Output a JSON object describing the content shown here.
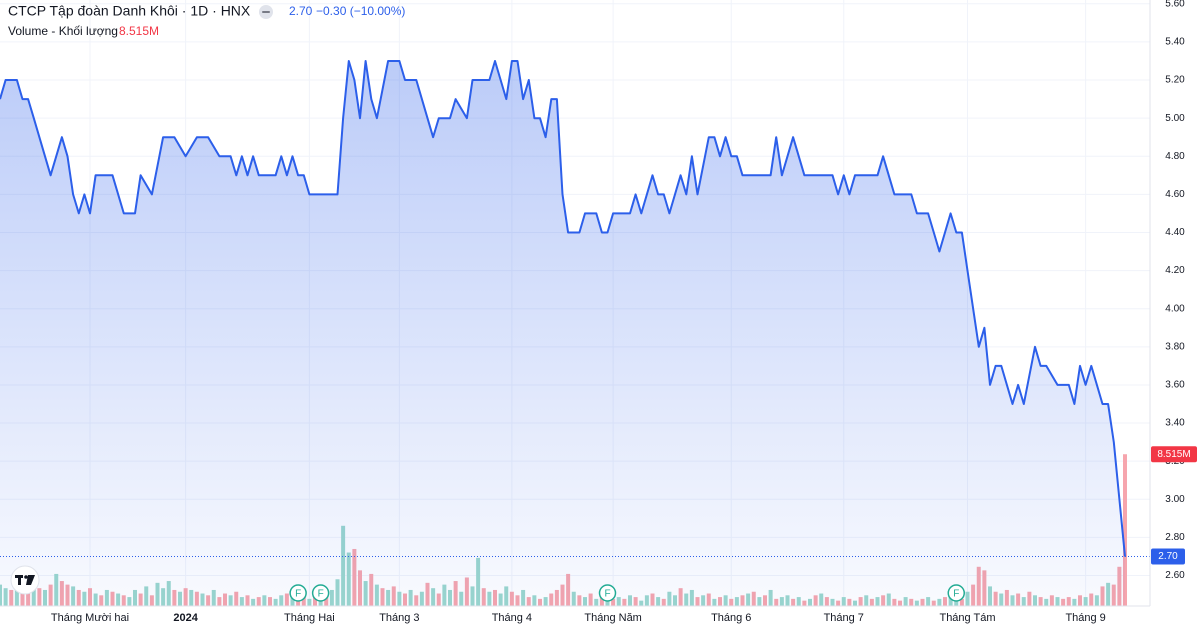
{
  "chart_data": {
    "type": "area",
    "title": "CTCP Tập đoàn Danh Khôi · 1D · HNX",
    "change": "−0.30 (−10.00%)",
    "line_color": "#2c5fea",
    "x": [
      0,
      1,
      3,
      4,
      5,
      6,
      8,
      9,
      11,
      12,
      13,
      14,
      15,
      16,
      17,
      20,
      22,
      24,
      25,
      27,
      29,
      31,
      33,
      35,
      37,
      39,
      41,
      42,
      43,
      44,
      45,
      46,
      49,
      50,
      51,
      52,
      53,
      54,
      55,
      60,
      61,
      62,
      63,
      64,
      65,
      66,
      67,
      69,
      71,
      72,
      74,
      76,
      77,
      78,
      80,
      81,
      83,
      84,
      87,
      88,
      90,
      91,
      92,
      93,
      94,
      95,
      96,
      97,
      98,
      99,
      100,
      101,
      103,
      104,
      106,
      107,
      108,
      109,
      112,
      113,
      114,
      116,
      117,
      118,
      119,
      121,
      122,
      123,
      124,
      126,
      127,
      128,
      129,
      130,
      131,
      132,
      137,
      138,
      139,
      141,
      143,
      148,
      149,
      150,
      151,
      152,
      156,
      157,
      159,
      162,
      163,
      165,
      166,
      167,
      169,
      170,
      171,
      172,
      174,
      175,
      176,
      177,
      178,
      180,
      181,
      182,
      184,
      185,
      186,
      188,
      190,
      191,
      192,
      193,
      194,
      196,
      197,
      198,
      199,
      200
    ],
    "values": [
      5.1,
      5.2,
      5.2,
      5.1,
      5.1,
      5.0,
      4.8,
      4.7,
      4.9,
      4.8,
      4.6,
      4.5,
      4.6,
      4.5,
      4.7,
      4.7,
      4.5,
      4.5,
      4.7,
      4.6,
      4.9,
      4.9,
      4.8,
      4.9,
      4.9,
      4.8,
      4.8,
      4.7,
      4.8,
      4.7,
      4.8,
      4.7,
      4.7,
      4.8,
      4.7,
      4.8,
      4.7,
      4.7,
      4.6,
      4.6,
      5.0,
      5.3,
      5.2,
      5.0,
      5.3,
      5.1,
      5.0,
      5.3,
      5.3,
      5.2,
      5.2,
      5.0,
      4.9,
      5.0,
      5.0,
      5.1,
      5.0,
      5.2,
      5.2,
      5.3,
      5.1,
      5.3,
      5.3,
      5.1,
      5.2,
      5.0,
      5.0,
      4.9,
      5.1,
      5.1,
      4.6,
      4.4,
      4.4,
      4.5,
      4.5,
      4.4,
      4.4,
      4.5,
      4.5,
      4.6,
      4.5,
      4.7,
      4.6,
      4.6,
      4.5,
      4.7,
      4.6,
      4.8,
      4.6,
      4.9,
      4.9,
      4.8,
      4.9,
      4.8,
      4.8,
      4.7,
      4.7,
      4.9,
      4.7,
      4.9,
      4.7,
      4.7,
      4.6,
      4.7,
      4.6,
      4.7,
      4.7,
      4.8,
      4.6,
      4.6,
      4.5,
      4.5,
      4.4,
      4.3,
      4.5,
      4.4,
      4.4,
      4.2,
      3.8,
      3.9,
      3.6,
      3.7,
      3.7,
      3.5,
      3.6,
      3.5,
      3.8,
      3.7,
      3.7,
      3.6,
      3.6,
      3.5,
      3.7,
      3.6,
      3.7,
      3.5,
      3.5,
      3.3,
      3.0,
      2.7
    ],
    "xlim": [
      0,
      200
    ],
    "xticks": [
      {
        "value": 16,
        "label": "Tháng Mười hai"
      },
      {
        "value": 33,
        "label": "2024"
      },
      {
        "value": 55,
        "label": "Tháng Hai"
      },
      {
        "value": 71,
        "label": "Tháng 3"
      },
      {
        "value": 91,
        "label": "Tháng 4"
      },
      {
        "value": 109,
        "label": "Tháng Năm"
      },
      {
        "value": 130,
        "label": "Tháng 6"
      },
      {
        "value": 150,
        "label": "Tháng 7"
      },
      {
        "value": 172,
        "label": "Tháng Tám"
      },
      {
        "value": 193,
        "label": "Tháng 9"
      }
    ],
    "ylim": [
      2.44,
      5.62
    ],
    "yticks": [
      {
        "value": 2.6,
        "label": "2.60"
      },
      {
        "value": 2.8,
        "label": "2.80"
      },
      {
        "value": 3.0,
        "label": "3.00"
      },
      {
        "value": 3.2,
        "label": "3.20"
      },
      {
        "value": 3.4,
        "label": "3.40"
      },
      {
        "value": 3.6,
        "label": "3.60"
      },
      {
        "value": 3.8,
        "label": "3.80"
      },
      {
        "value": 4.0,
        "label": "4.00"
      },
      {
        "value": 4.2,
        "label": "4.20"
      },
      {
        "value": 4.4,
        "label": "4.40"
      },
      {
        "value": 4.6,
        "label": "4.60"
      },
      {
        "value": 4.8,
        "label": "4.80"
      },
      {
        "value": 5.0,
        "label": "5.00"
      },
      {
        "value": 5.2,
        "label": "5.20"
      },
      {
        "value": 5.4,
        "label": "5.40"
      },
      {
        "value": 5.6,
        "label": "5.60"
      }
    ],
    "grid": true,
    "last_price": {
      "value": 2.7,
      "label": "2.70",
      "color": "#2c5fea"
    },
    "volume": {
      "label": "Volume - Khối lượng",
      "badge": {
        "value": 8.515,
        "label": "8.515M",
        "color": "#f23645"
      },
      "lim": [
        0,
        34
      ],
      "values": [
        1.2,
        1.0,
        0.9,
        1.3,
        0.8,
        1.5,
        1.1,
        1.0,
        0.9,
        1.2,
        1.8,
        1.4,
        1.2,
        1.1,
        0.9,
        0.8,
        1.0,
        0.7,
        0.6,
        0.9,
        0.8,
        0.7,
        0.6,
        0.5,
        0.9,
        0.7,
        1.1,
        0.6,
        1.3,
        1.0,
        1.4,
        0.9,
        0.8,
        1.0,
        0.9,
        0.8,
        0.7,
        0.6,
        0.9,
        0.5,
        0.7,
        0.6,
        0.8,
        0.5,
        0.6,
        0.4,
        0.5,
        0.6,
        0.5,
        0.4,
        0.6,
        0.7,
        0.5,
        0.8,
        0.6,
        0.4,
        0.5,
        0.6,
        0.7,
        0.9,
        1.5,
        4.5,
        3.0,
        3.2,
        2.0,
        1.4,
        1.8,
        1.2,
        1.0,
        0.9,
        1.1,
        0.8,
        0.7,
        0.9,
        0.6,
        0.8,
        1.3,
        1.0,
        0.7,
        1.2,
        0.9,
        1.4,
        0.8,
        1.6,
        1.1,
        2.7,
        1.0,
        0.8,
        0.9,
        0.7,
        1.1,
        0.8,
        0.6,
        0.9,
        0.5,
        0.6,
        0.4,
        0.5,
        0.7,
        0.9,
        1.2,
        1.8,
        0.8,
        0.6,
        0.5,
        0.7,
        0.4,
        0.6,
        0.5,
        0.4,
        0.5,
        0.4,
        0.6,
        0.5,
        0.3,
        0.6,
        0.7,
        0.5,
        0.4,
        0.8,
        0.6,
        1.0,
        0.7,
        0.9,
        0.5,
        0.6,
        0.7,
        0.4,
        0.5,
        0.6,
        0.4,
        0.5,
        0.6,
        0.7,
        0.8,
        0.5,
        0.6,
        0.9,
        0.4,
        0.5,
        0.6,
        0.4,
        0.5,
        0.3,
        0.4,
        0.6,
        0.7,
        0.5,
        0.4,
        0.3,
        0.5,
        0.4,
        0.3,
        0.5,
        0.6,
        0.4,
        0.5,
        0.6,
        0.7,
        0.4,
        0.3,
        0.5,
        0.4,
        0.3,
        0.4,
        0.5,
        0.3,
        0.4,
        0.5,
        0.6,
        0.5,
        0.4,
        0.8,
        1.2,
        2.2,
        2.0,
        1.1,
        0.8,
        0.7,
        0.9,
        0.6,
        0.7,
        0.5,
        0.8,
        0.6,
        0.5,
        0.4,
        0.6,
        0.5,
        0.4,
        0.5,
        0.4,
        0.6,
        0.5,
        0.7,
        0.6,
        1.1,
        1.3,
        1.2,
        2.2,
        8.515
      ],
      "colors": [
        "#9bd7cd",
        "#9bd7cd",
        "#f6a5ad",
        "#9bd7cd",
        "#f6a5ad",
        "#f6a5ad",
        "#9bd7cd",
        "#f6a5ad",
        "#9bd7cd",
        "#f6a5ad",
        "#9bd7cd",
        "#f6a5ad",
        "#f6a5ad",
        "#9bd7cd",
        "#f6a5ad",
        "#9bd7cd",
        "#f6a5ad",
        "#9bd7cd",
        "#f6a5ad",
        "#9bd7cd",
        "#f6a5ad",
        "#9bd7cd",
        "#f6a5ad",
        "#9bd7cd",
        "#9bd7cd",
        "#f6a5ad",
        "#9bd7cd",
        "#f6a5ad",
        "#9bd7cd",
        "#9bd7cd",
        "#9bd7cd",
        "#f6a5ad",
        "#9bd7cd",
        "#f6a5ad",
        "#9bd7cd",
        "#f6a5ad",
        "#9bd7cd",
        "#f6a5ad",
        "#9bd7cd",
        "#f6a5ad",
        "#f6a5ad",
        "#9bd7cd",
        "#f6a5ad",
        "#9bd7cd",
        "#f6a5ad",
        "#9bd7cd",
        "#f6a5ad",
        "#9bd7cd",
        "#f6a5ad",
        "#9bd7cd",
        "#9bd7cd",
        "#f6a5ad",
        "#9bd7cd",
        "#f6a5ad",
        "#f6a5ad",
        "#9bd7cd",
        "#f6a5ad",
        "#9bd7cd",
        "#f6a5ad",
        "#9bd7cd",
        "#9bd7cd",
        "#9bd7cd",
        "#9bd7cd",
        "#f6a5ad",
        "#f6a5ad",
        "#9bd7cd",
        "#f6a5ad",
        "#9bd7cd",
        "#f6a5ad",
        "#9bd7cd",
        "#f6a5ad",
        "#9bd7cd",
        "#f6a5ad",
        "#9bd7cd",
        "#f6a5ad",
        "#9bd7cd",
        "#f6a5ad",
        "#9bd7cd",
        "#f6a5ad",
        "#9bd7cd",
        "#9bd7cd",
        "#f6a5ad",
        "#9bd7cd",
        "#f6a5ad",
        "#9bd7cd",
        "#9bd7cd",
        "#f6a5ad",
        "#9bd7cd",
        "#f6a5ad",
        "#9bd7cd",
        "#9bd7cd",
        "#f6a5ad",
        "#f6a5ad",
        "#9bd7cd",
        "#f6a5ad",
        "#9bd7cd",
        "#f6a5ad",
        "#9bd7cd",
        "#f6a5ad",
        "#f6a5ad",
        "#f6a5ad",
        "#f6a5ad",
        "#9bd7cd",
        "#f6a5ad",
        "#9bd7cd",
        "#f6a5ad",
        "#9bd7cd",
        "#f6a5ad",
        "#9bd7cd",
        "#f6a5ad",
        "#9bd7cd",
        "#f6a5ad",
        "#9bd7cd",
        "#f6a5ad",
        "#9bd7cd",
        "#9bd7cd",
        "#f6a5ad",
        "#9bd7cd",
        "#f6a5ad",
        "#9bd7cd",
        "#9bd7cd",
        "#f6a5ad",
        "#9bd7cd",
        "#9bd7cd",
        "#f6a5ad",
        "#9bd7cd",
        "#f6a5ad",
        "#9bd7cd",
        "#f6a5ad",
        "#9bd7cd",
        "#f6a5ad",
        "#9bd7cd",
        "#f6a5ad",
        "#9bd7cd",
        "#f6a5ad",
        "#9bd7cd",
        "#f6a5ad",
        "#9bd7cd",
        "#f6a5ad",
        "#9bd7cd",
        "#9bd7cd",
        "#f6a5ad",
        "#9bd7cd",
        "#f6a5ad",
        "#9bd7cd",
        "#f6a5ad",
        "#9bd7cd",
        "#f6a5ad",
        "#9bd7cd",
        "#f6a5ad",
        "#9bd7cd",
        "#f6a5ad",
        "#9bd7cd",
        "#f6a5ad",
        "#9bd7cd",
        "#f6a5ad",
        "#9bd7cd",
        "#f6a5ad",
        "#9bd7cd",
        "#f6a5ad",
        "#f6a5ad",
        "#9bd7cd",
        "#f6a5ad",
        "#9bd7cd",
        "#f6a5ad",
        "#9bd7cd",
        "#f6a5ad",
        "#9bd7cd",
        "#f6a5ad",
        "#9bd7cd",
        "#9bd7cd",
        "#f6a5ad",
        "#9bd7cd",
        "#f6a5ad",
        "#f6a5ad",
        "#f6a5ad",
        "#9bd7cd",
        "#f6a5ad",
        "#9bd7cd",
        "#f6a5ad",
        "#9bd7cd",
        "#f6a5ad",
        "#9bd7cd",
        "#f6a5ad",
        "#9bd7cd",
        "#f6a5ad",
        "#9bd7cd",
        "#f6a5ad",
        "#9bd7cd",
        "#f6a5ad",
        "#f6a5ad",
        "#9bd7cd",
        "#f6a5ad",
        "#9bd7cd",
        "#f6a5ad",
        "#9bd7cd",
        "#f6a5ad",
        "#9bd7cd",
        "#f6a5ad",
        "#f6a5ad",
        "#f6a5ad"
      ]
    },
    "events": [
      {
        "x": 53,
        "label": "F"
      },
      {
        "x": 57,
        "label": "F"
      },
      {
        "x": 108,
        "label": "F"
      },
      {
        "x": 170,
        "label": "F"
      }
    ]
  }
}
